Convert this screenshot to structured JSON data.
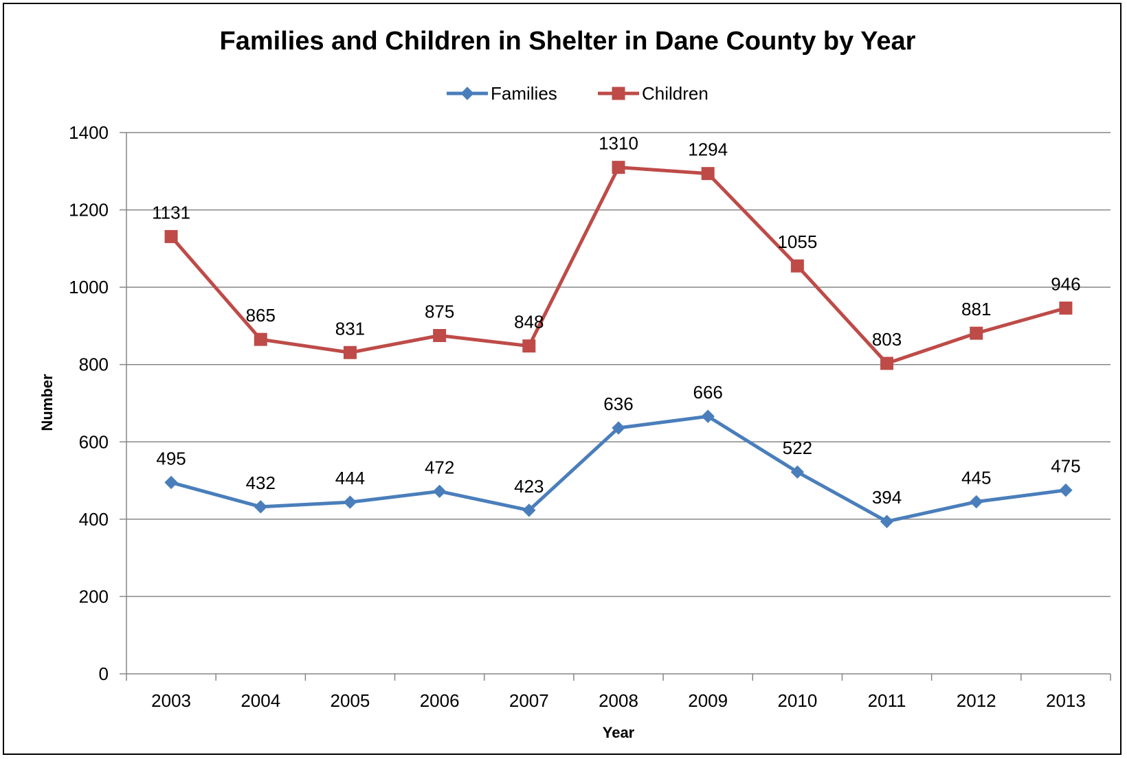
{
  "chart_data": {
    "type": "line",
    "title": "Families and Children in Shelter in Dane County by Year",
    "xlabel": "Year",
    "ylabel": "Number",
    "categories": [
      "2003",
      "2004",
      "2005",
      "2006",
      "2007",
      "2008",
      "2009",
      "2010",
      "2011",
      "2012",
      "2013"
    ],
    "ylim": [
      0,
      1400
    ],
    "yticks": [
      0,
      200,
      400,
      600,
      800,
      1000,
      1200,
      1400
    ],
    "grid": true,
    "legend_position": "top",
    "series": [
      {
        "name": "Families",
        "color": "#4a7ebb",
        "marker": "diamond",
        "values": [
          495,
          432,
          444,
          472,
          423,
          636,
          666,
          522,
          394,
          445,
          475
        ]
      },
      {
        "name": "Children",
        "color": "#be4b48",
        "marker": "square",
        "values": [
          1131,
          865,
          831,
          875,
          848,
          1310,
          1294,
          1055,
          803,
          881,
          946
        ]
      }
    ]
  }
}
